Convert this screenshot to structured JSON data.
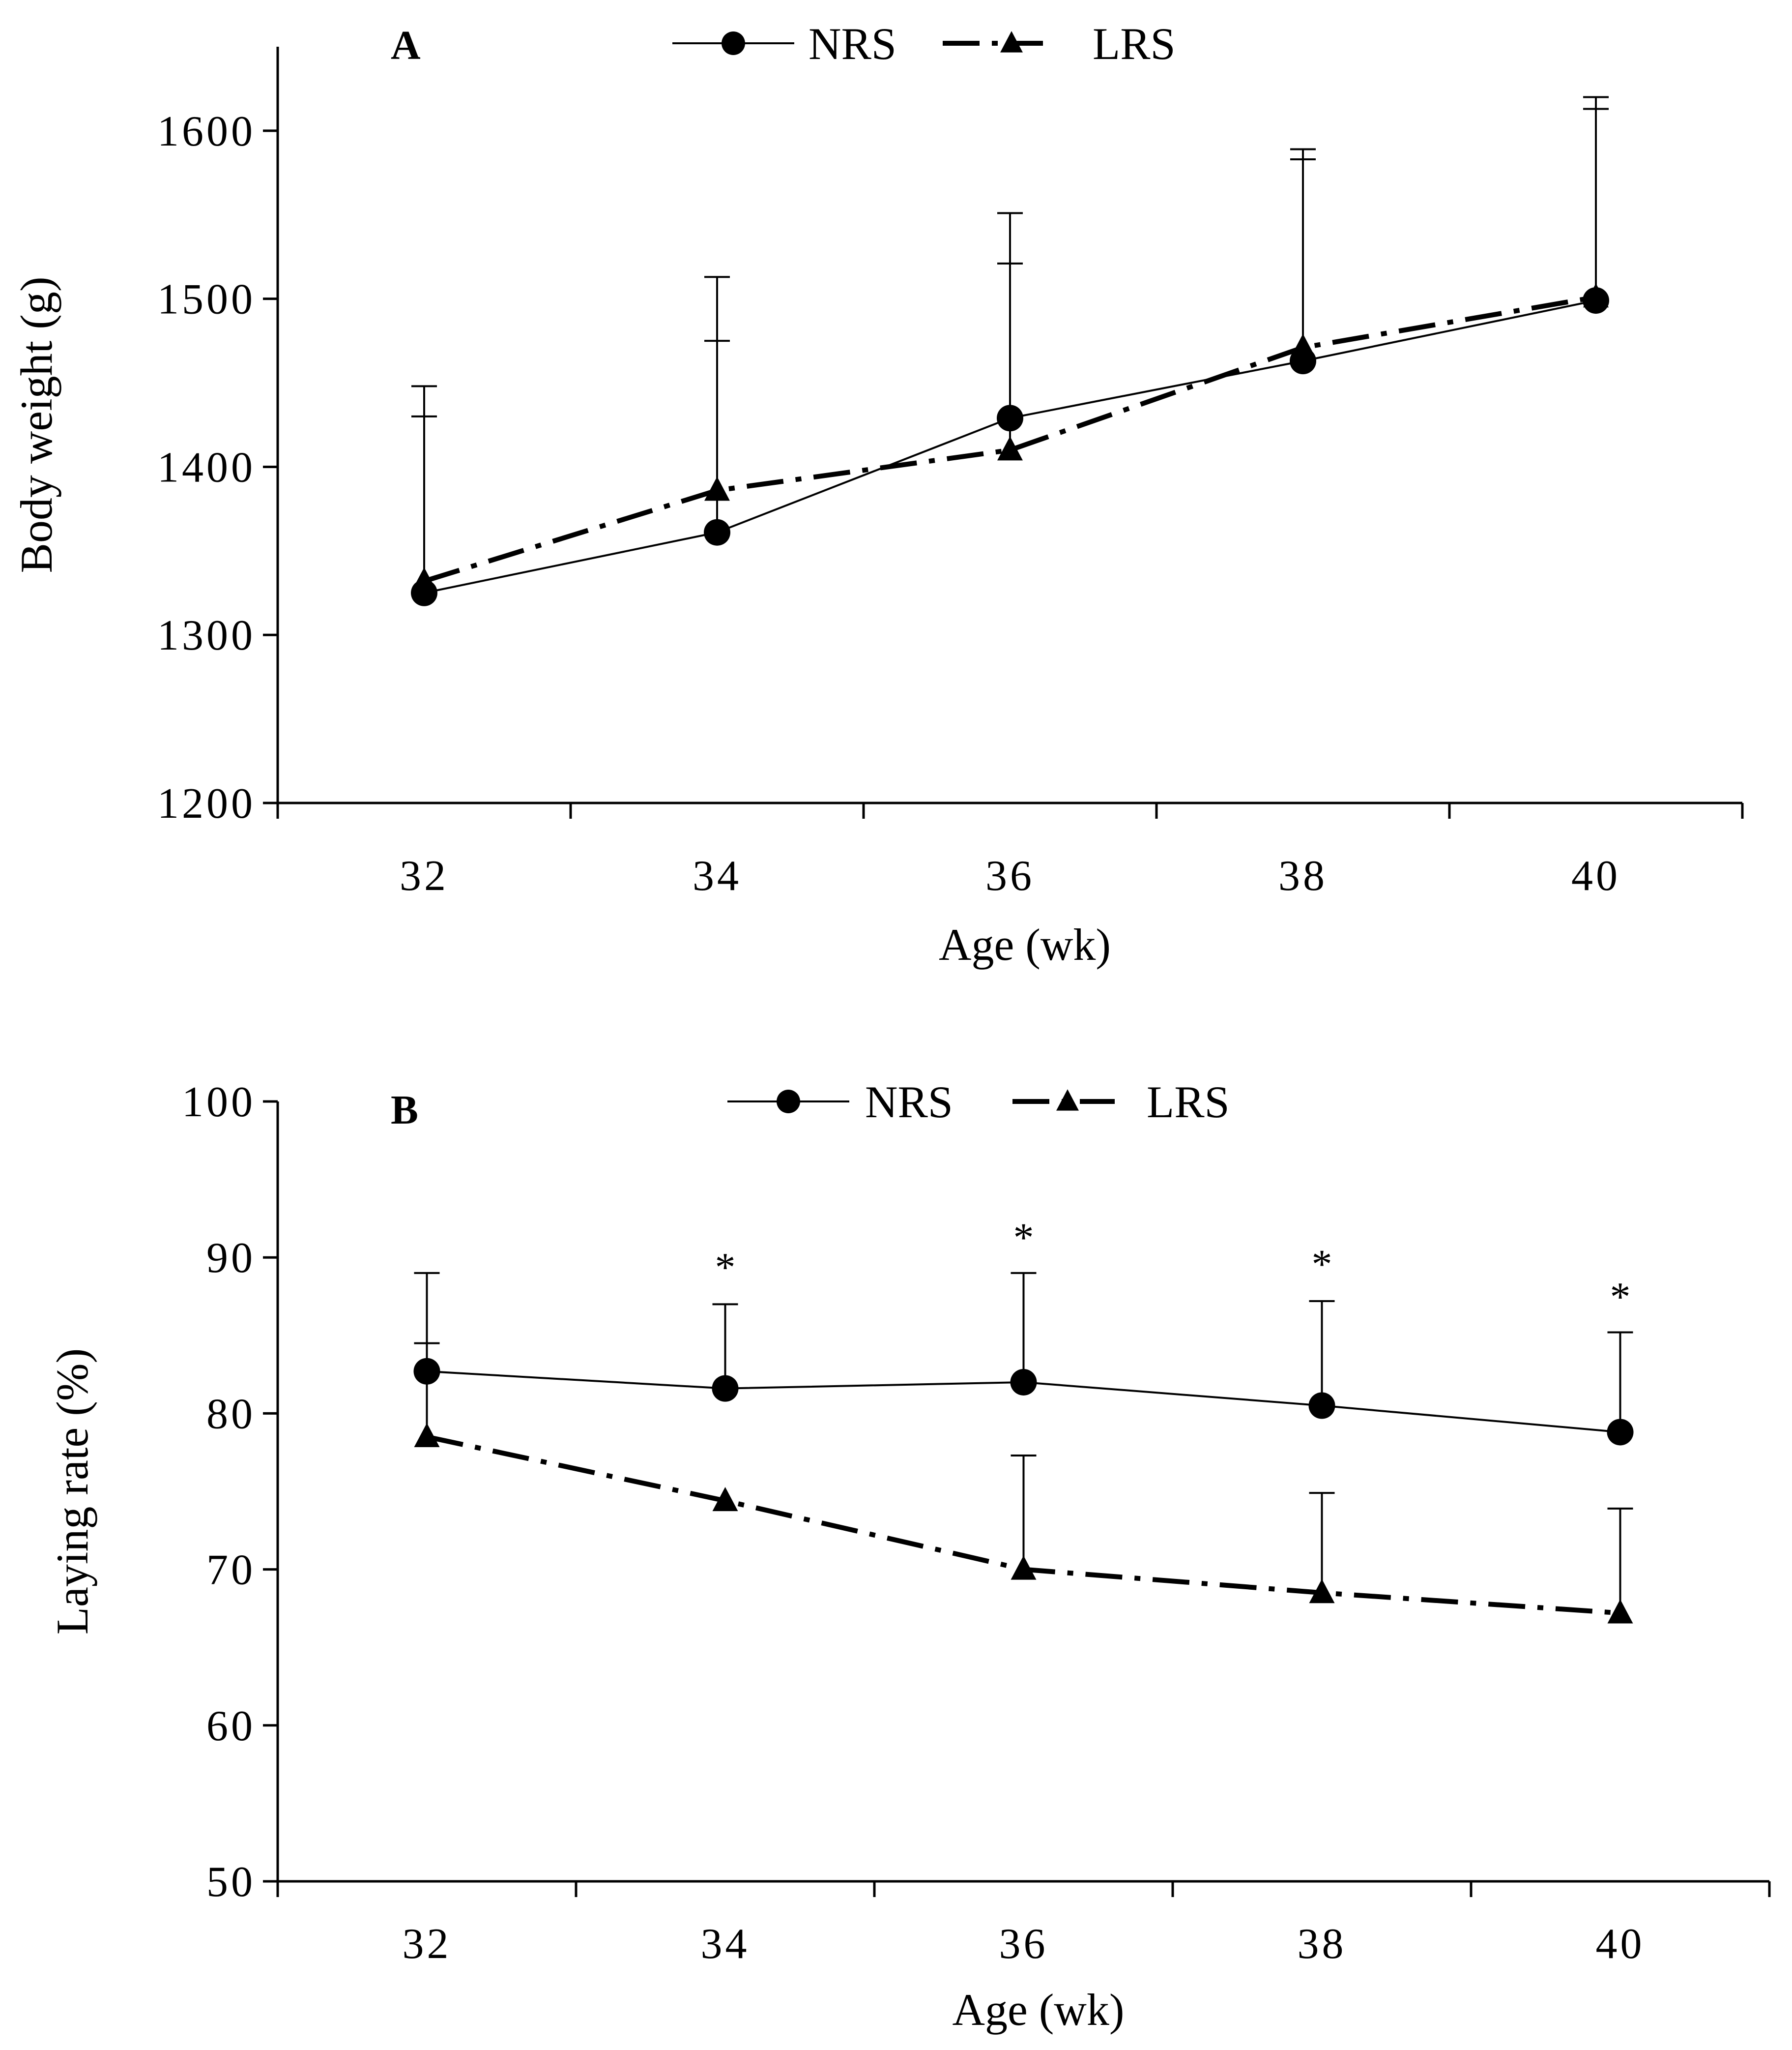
{
  "colors": {
    "line": "#000000",
    "background": "#ffffff"
  },
  "chart_data": [
    {
      "type": "line",
      "panel_label": "A",
      "title": "",
      "xlabel": "Age (wk)",
      "ylabel": "Body weight (g)",
      "x": [
        32,
        34,
        36,
        38,
        40
      ],
      "xlim": [
        31,
        41
      ],
      "ylim": [
        1200,
        1650
      ],
      "yticks": [
        1200,
        1300,
        1400,
        1500,
        1600
      ],
      "ytick_labels": [
        "1200",
        "1300",
        "1400",
        "1500",
        "1600"
      ],
      "xtick_labels": [
        "32",
        "34",
        "36",
        "38",
        "40"
      ],
      "legend": {
        "placement": "top-center",
        "entries": [
          "NRS",
          "LRS"
        ]
      },
      "series": [
        {
          "name": "NRS",
          "marker": "circle",
          "style": "solid",
          "values": [
            1325,
            1361,
            1429,
            1463,
            1499
          ],
          "error_upper": [
            1430,
            1475,
            1521,
            1583,
            1613
          ]
        },
        {
          "name": "LRS",
          "marker": "triangle",
          "style": "dash-dot",
          "values": [
            1332,
            1386,
            1410,
            1471,
            1501
          ],
          "error_upper": [
            1448,
            1513,
            1551,
            1589,
            1620
          ]
        }
      ],
      "annotations": []
    },
    {
      "type": "line",
      "panel_label": "B",
      "title": "",
      "xlabel": "Age (wk)",
      "ylabel": "Laying rate (%)",
      "x": [
        32,
        34,
        36,
        38,
        40
      ],
      "xlim": [
        31,
        41
      ],
      "ylim": [
        50,
        100
      ],
      "yticks": [
        50,
        60,
        70,
        80,
        90,
        100
      ],
      "ytick_labels": [
        "50",
        "60",
        "70",
        "80",
        "90",
        "100"
      ],
      "xtick_labels": [
        "32",
        "34",
        "36",
        "38",
        "40"
      ],
      "legend": {
        "placement": "top-center",
        "entries": [
          "NRS",
          "LRS"
        ]
      },
      "series": [
        {
          "name": "NRS",
          "marker": "circle",
          "style": "solid",
          "values": [
            82.7,
            81.6,
            82.0,
            80.5,
            78.8
          ],
          "error_upper": [
            89.0,
            87.0,
            89.0,
            87.2,
            85.2
          ]
        },
        {
          "name": "LRS",
          "marker": "triangle",
          "style": "dash-dot",
          "values": [
            78.5,
            74.4,
            70.0,
            68.5,
            67.2
          ],
          "error_upper": [
            84.5,
            74.4,
            77.3,
            74.9,
            73.9
          ]
        }
      ],
      "annotations": [
        {
          "text": "*",
          "x": 34,
          "y": 88.5
        },
        {
          "text": "*",
          "x": 36,
          "y": 90.4
        },
        {
          "text": "*",
          "x": 38,
          "y": 88.7
        },
        {
          "text": "*",
          "x": 40,
          "y": 86.6
        }
      ]
    }
  ]
}
